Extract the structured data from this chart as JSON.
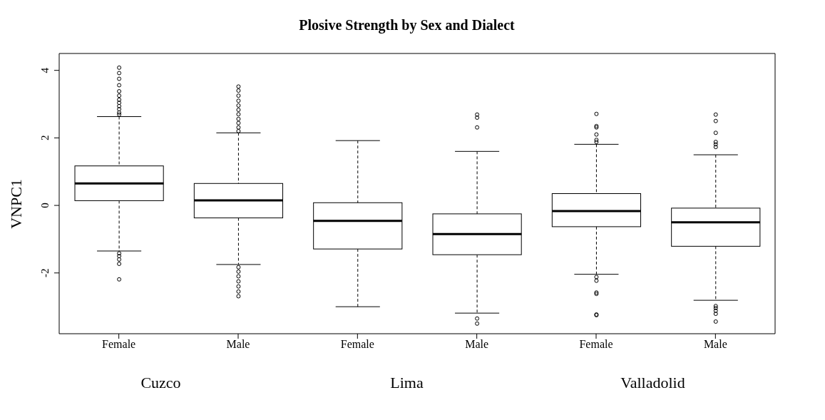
{
  "chart_data": {
    "type": "box",
    "title": "Plosive Strength by Sex and Dialect",
    "ylabel": "VNPC1",
    "categories": [
      "Female",
      "Male",
      "Female",
      "Male",
      "Female",
      "Male"
    ],
    "annotations": [
      "Cuzco",
      "Lima",
      "Valladolid"
    ],
    "ylim": [
      -3.8,
      4.5
    ],
    "yticks": [
      -2,
      0,
      2,
      4
    ],
    "grid": false,
    "legend": false,
    "boxes": [
      {
        "low": -1.35,
        "q1": 0.14,
        "median": 0.65,
        "q3": 1.17,
        "high": 2.63,
        "outliers": [
          4.08,
          3.92,
          3.75,
          3.56,
          3.38,
          3.25,
          3.13,
          3.04,
          2.94,
          2.85,
          2.75,
          2.69,
          -1.42,
          -1.5,
          -1.6,
          -1.73,
          -2.19
        ]
      },
      {
        "low": -1.75,
        "q1": -0.37,
        "median": 0.15,
        "q3": 0.65,
        "high": 2.15,
        "outliers": [
          3.52,
          3.4,
          3.25,
          3.1,
          2.96,
          2.83,
          2.7,
          2.56,
          2.44,
          2.31,
          2.2,
          -1.83,
          -1.96,
          -2.1,
          -2.25,
          -2.4,
          -2.55,
          -2.69
        ]
      },
      {
        "low": -3.0,
        "q1": -1.29,
        "median": -0.46,
        "q3": 0.08,
        "high": 1.92
      },
      {
        "low": -3.19,
        "q1": -1.46,
        "median": -0.85,
        "q3": -0.25,
        "high": 1.6,
        "outliers": [
          2.69,
          2.6,
          2.31,
          -3.35,
          -3.5
        ]
      },
      {
        "low": -2.04,
        "q1": -0.63,
        "median": -0.17,
        "q3": 0.35,
        "high": 1.81,
        "outliers": [
          2.71,
          2.35,
          2.31,
          2.1,
          1.94,
          1.88,
          -2.12,
          -2.23,
          -2.58,
          -2.62,
          -3.23,
          -3.25
        ]
      },
      {
        "low": -2.81,
        "q1": -1.21,
        "median": -0.5,
        "q3": -0.08,
        "high": 1.5,
        "outliers": [
          2.69,
          2.5,
          2.15,
          1.88,
          1.81,
          1.73,
          -2.98,
          -3.04,
          -3.12,
          -3.21,
          -3.44
        ]
      }
    ]
  }
}
